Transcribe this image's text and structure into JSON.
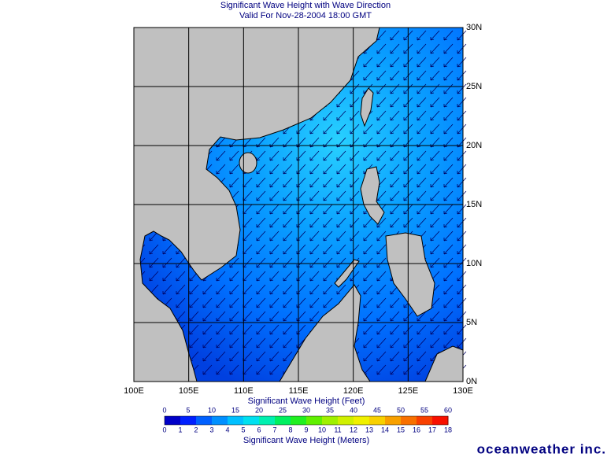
{
  "title": "Significant Wave Height with Wave Direction",
  "subtitle": "Valid For Nov-28-2004 18:00 GMT",
  "map": {
    "xlim": [
      100,
      130
    ],
    "ylim": [
      0,
      30
    ],
    "xticks": [
      {
        "value": 100,
        "label": "100E"
      },
      {
        "value": 105,
        "label": "105E"
      },
      {
        "value": 110,
        "label": "110E"
      },
      {
        "value": 115,
        "label": "115E"
      },
      {
        "value": 120,
        "label": "120E"
      },
      {
        "value": 125,
        "label": "125E"
      },
      {
        "value": 130,
        "label": "130E"
      }
    ],
    "yticks": [
      {
        "value": 0,
        "label": "0N"
      },
      {
        "value": 5,
        "label": "5N"
      },
      {
        "value": 10,
        "label": "10N"
      },
      {
        "value": 15,
        "label": "15N"
      },
      {
        "value": 20,
        "label": "20N"
      },
      {
        "value": 25,
        "label": "25N"
      },
      {
        "value": 30,
        "label": "30N"
      }
    ]
  },
  "colorbar": {
    "feet_label": "Significant Wave Height (Feet)",
    "meters_label": "Significant Wave Height (Meters)",
    "feet_lim": [
      0,
      60
    ],
    "feet_ticks": [
      0,
      5,
      10,
      15,
      20,
      25,
      30,
      35,
      40,
      45,
      50,
      55,
      60
    ],
    "meters_lim": [
      0,
      18
    ],
    "meters_ticks": [
      0,
      1,
      2,
      3,
      4,
      5,
      6,
      7,
      8,
      9,
      10,
      11,
      12,
      13,
      14,
      15,
      16,
      17,
      18
    ],
    "colors": [
      "#0000c8",
      "#0020ff",
      "#0060ff",
      "#0090ff",
      "#00c0ff",
      "#00e0f0",
      "#00f0b0",
      "#00f060",
      "#20f020",
      "#60f000",
      "#a0f000",
      "#d0f000",
      "#f0f000",
      "#f8d000",
      "#f8a000",
      "#f87000",
      "#f84000",
      "#f81000"
    ]
  },
  "logo": "oceanweather inc."
}
